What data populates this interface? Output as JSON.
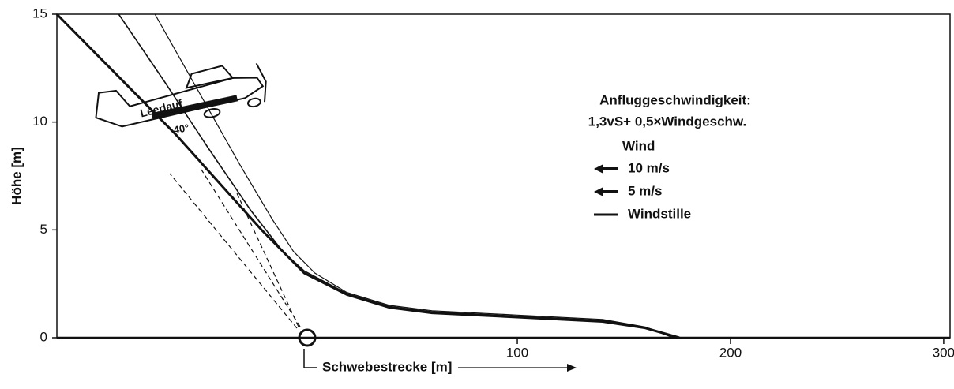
{
  "chart_data": {
    "type": "line",
    "ylabel": "Höhe [m]",
    "xlabel": "Schwebestrecke [m]",
    "annotations": [
      "Anfluggeschwindigkeit:",
      "1,3vS+ 0,5×Windgeschw.",
      "Leerlauf",
      "40°"
    ],
    "legend_title": "Wind",
    "xlim": [
      -116,
      303
    ],
    "ylim": [
      0,
      15
    ],
    "xticks": [
      100,
      200,
      300
    ],
    "yticks": [
      0,
      5,
      10,
      15
    ],
    "series": [
      {
        "name": "10 m/s",
        "color": "#111111",
        "x": [
          -70,
          -50,
          -30,
          -15,
          -5,
          5,
          20,
          40,
          60,
          100,
          140,
          160,
          173
        ],
        "values": [
          15,
          11.5,
          8.0,
          5.5,
          4.0,
          3.0,
          2.1,
          1.5,
          1.25,
          1.05,
          0.85,
          0.5,
          0
        ]
      },
      {
        "name": "5 m/s",
        "color": "#111111",
        "x": [
          -87,
          -65,
          -45,
          -25,
          -10,
          0,
          20,
          40,
          60,
          100,
          140,
          160,
          175
        ],
        "values": [
          15,
          11.8,
          8.8,
          5.9,
          4.0,
          3.1,
          2.05,
          1.45,
          1.2,
          1.0,
          0.8,
          0.48,
          0
        ]
      },
      {
        "name": "Windstille",
        "color": "#111111",
        "x": [
          -116,
          -90,
          -60,
          -40,
          -20,
          0,
          20,
          40,
          60,
          100,
          140,
          160,
          176
        ],
        "values": [
          15,
          12.4,
          9.4,
          7.2,
          5.0,
          3.0,
          2.0,
          1.4,
          1.15,
          0.95,
          0.75,
          0.45,
          0
        ]
      }
    ]
  }
}
